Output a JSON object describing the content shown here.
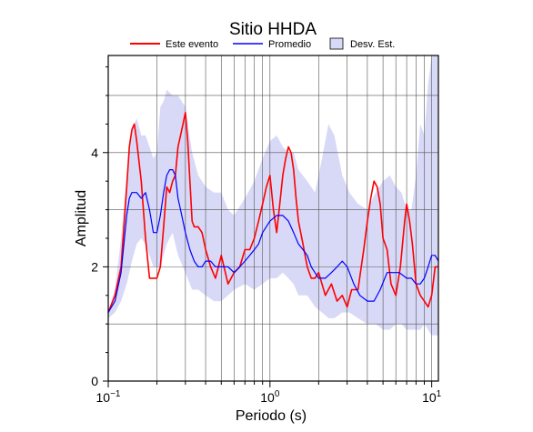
{
  "chart_data": {
    "type": "line",
    "title": "Sitio HHDA",
    "xlabel": "Periodo (s)",
    "ylabel": "Amplitud",
    "x_scale": "log",
    "xlim": [
      0.1,
      11
    ],
    "ylim": [
      0,
      5.7
    ],
    "grid": true,
    "legend_position": "top",
    "legend": [
      {
        "label": "Este evento",
        "color": "#ff0000",
        "kind": "line"
      },
      {
        "label": "Promedio",
        "color": "#0000ff",
        "kind": "line"
      },
      {
        "label": "Desv. Est.",
        "color": "#d8d8f7",
        "kind": "band"
      }
    ],
    "x_ticks": [
      {
        "value": 0.1,
        "base": "10",
        "exp": "−1"
      },
      {
        "value": 1,
        "base": "10",
        "exp": "0"
      },
      {
        "value": 10,
        "base": "10",
        "exp": "1"
      }
    ],
    "y_ticks": [
      {
        "value": 0,
        "label": "0"
      },
      {
        "value": 2,
        "label": "2"
      },
      {
        "value": 4,
        "label": "4"
      }
    ],
    "series": [
      {
        "name": "Este evento",
        "color": "#ff0000",
        "x": [
          0.1,
          0.11,
          0.12,
          0.125,
          0.13,
          0.135,
          0.14,
          0.145,
          0.15,
          0.16,
          0.17,
          0.18,
          0.19,
          0.2,
          0.21,
          0.22,
          0.23,
          0.24,
          0.25,
          0.26,
          0.27,
          0.28,
          0.29,
          0.3,
          0.31,
          0.32,
          0.33,
          0.34,
          0.36,
          0.38,
          0.4,
          0.43,
          0.46,
          0.5,
          0.55,
          0.6,
          0.65,
          0.7,
          0.75,
          0.8,
          0.85,
          0.9,
          0.95,
          1.0,
          1.05,
          1.1,
          1.15,
          1.2,
          1.25,
          1.3,
          1.35,
          1.4,
          1.45,
          1.5,
          1.6,
          1.7,
          1.8,
          1.9,
          2.0,
          2.2,
          2.4,
          2.6,
          2.8,
          3.0,
          3.2,
          3.5,
          3.8,
          4.0,
          4.2,
          4.4,
          4.6,
          4.8,
          5.0,
          5.3,
          5.6,
          6.0,
          6.4,
          6.8,
          7.0,
          7.3,
          7.6,
          8.0,
          8.5,
          9.0,
          9.5,
          10.0,
          10.5,
          11.0
        ],
        "y": [
          1.2,
          1.5,
          2.0,
          2.7,
          3.4,
          4.1,
          4.4,
          4.5,
          4.2,
          3.5,
          2.5,
          1.8,
          1.8,
          1.8,
          2.0,
          2.7,
          3.4,
          3.3,
          3.5,
          3.6,
          4.1,
          4.3,
          4.5,
          4.7,
          4.2,
          3.5,
          2.8,
          2.7,
          2.7,
          2.6,
          2.3,
          2.0,
          1.8,
          2.2,
          1.7,
          1.9,
          2.0,
          2.3,
          2.3,
          2.5,
          2.8,
          3.1,
          3.4,
          3.6,
          3.0,
          2.6,
          3.1,
          3.6,
          3.9,
          4.1,
          4.0,
          3.7,
          3.2,
          2.8,
          2.4,
          2.0,
          1.8,
          1.8,
          1.9,
          1.5,
          1.7,
          1.4,
          1.5,
          1.3,
          1.6,
          1.6,
          2.3,
          2.8,
          3.2,
          3.5,
          3.4,
          3.1,
          2.5,
          2.3,
          1.7,
          1.5,
          2.0,
          2.8,
          3.1,
          2.8,
          2.4,
          1.7,
          1.5,
          1.4,
          1.3,
          1.5,
          2.0,
          2.0
        ]
      },
      {
        "name": "Promedio",
        "color": "#0000ff",
        "x": [
          0.1,
          0.11,
          0.12,
          0.125,
          0.13,
          0.135,
          0.14,
          0.15,
          0.16,
          0.17,
          0.18,
          0.19,
          0.2,
          0.21,
          0.22,
          0.23,
          0.24,
          0.25,
          0.26,
          0.27,
          0.28,
          0.3,
          0.32,
          0.34,
          0.36,
          0.38,
          0.4,
          0.43,
          0.46,
          0.5,
          0.55,
          0.6,
          0.65,
          0.7,
          0.75,
          0.8,
          0.85,
          0.9,
          1.0,
          1.1,
          1.2,
          1.3,
          1.4,
          1.5,
          1.6,
          1.7,
          1.8,
          2.0,
          2.2,
          2.4,
          2.6,
          2.8,
          3.0,
          3.3,
          3.6,
          4.0,
          4.4,
          4.8,
          5.3,
          5.8,
          6.3,
          7.0,
          7.5,
          8.0,
          8.5,
          9.0,
          9.5,
          10.0,
          10.5,
          11.0
        ],
        "y": [
          1.2,
          1.4,
          1.9,
          2.4,
          2.9,
          3.2,
          3.3,
          3.3,
          3.2,
          3.3,
          3.0,
          2.6,
          2.6,
          2.9,
          3.3,
          3.6,
          3.7,
          3.7,
          3.6,
          3.2,
          3.0,
          2.6,
          2.3,
          2.1,
          2.0,
          2.0,
          2.1,
          2.1,
          2.0,
          2.0,
          2.0,
          1.9,
          2.0,
          2.1,
          2.2,
          2.3,
          2.4,
          2.6,
          2.8,
          2.9,
          2.9,
          2.8,
          2.6,
          2.4,
          2.3,
          2.2,
          2.0,
          1.8,
          1.8,
          1.9,
          2.0,
          2.1,
          2.0,
          1.7,
          1.5,
          1.4,
          1.4,
          1.6,
          1.9,
          1.9,
          1.9,
          1.8,
          1.8,
          1.7,
          1.7,
          1.8,
          2.0,
          2.2,
          2.2,
          2.1
        ]
      }
    ],
    "band": {
      "name": "Desv. Est.",
      "color": "#d8d8f7",
      "x": [
        0.1,
        0.11,
        0.12,
        0.13,
        0.14,
        0.15,
        0.16,
        0.17,
        0.18,
        0.19,
        0.2,
        0.21,
        0.22,
        0.23,
        0.25,
        0.27,
        0.3,
        0.33,
        0.36,
        0.4,
        0.45,
        0.5,
        0.55,
        0.6,
        0.7,
        0.8,
        0.9,
        1.0,
        1.1,
        1.2,
        1.3,
        1.4,
        1.5,
        1.7,
        1.9,
        2.1,
        2.3,
        2.5,
        2.8,
        3.1,
        3.5,
        4.0,
        4.5,
        5.0,
        5.5,
        6.0,
        6.5,
        7.0,
        7.5,
        8.0,
        8.5,
        9.0,
        9.5,
        10.0,
        10.5,
        11.0
      ],
      "upper": [
        1.2,
        1.6,
        2.5,
        3.6,
        4.4,
        4.6,
        4.3,
        4.3,
        4.1,
        3.9,
        4.0,
        4.8,
        4.9,
        5.1,
        5.0,
        5.0,
        4.8,
        4.0,
        3.6,
        3.4,
        3.3,
        3.3,
        3.0,
        2.9,
        3.2,
        3.5,
        3.9,
        4.2,
        4.3,
        4.1,
        4.0,
        4.0,
        3.7,
        3.5,
        3.3,
        3.9,
        4.5,
        4.3,
        3.6,
        3.3,
        3.1,
        3.0,
        3.3,
        3.5,
        3.6,
        3.4,
        3.3,
        3.0,
        3.0,
        3.6,
        4.5,
        4.3,
        5.2,
        5.7,
        5.7,
        5.7
      ],
      "lower": [
        1.1,
        1.2,
        1.4,
        1.7,
        2.1,
        2.4,
        2.5,
        2.4,
        2.2,
        2.0,
        2.0,
        2.0,
        2.2,
        2.4,
        2.6,
        2.2,
        1.9,
        1.6,
        1.6,
        1.5,
        1.4,
        1.4,
        1.5,
        1.6,
        1.7,
        1.6,
        1.7,
        1.8,
        1.8,
        1.9,
        1.8,
        1.7,
        1.5,
        1.5,
        1.3,
        1.2,
        1.1,
        1.1,
        1.2,
        1.2,
        1.1,
        1.0,
        1.0,
        0.9,
        0.9,
        1.0,
        1.0,
        0.9,
        0.9,
        0.9,
        0.9,
        1.0,
        0.9,
        0.8,
        0.8,
        0.8
      ]
    }
  }
}
